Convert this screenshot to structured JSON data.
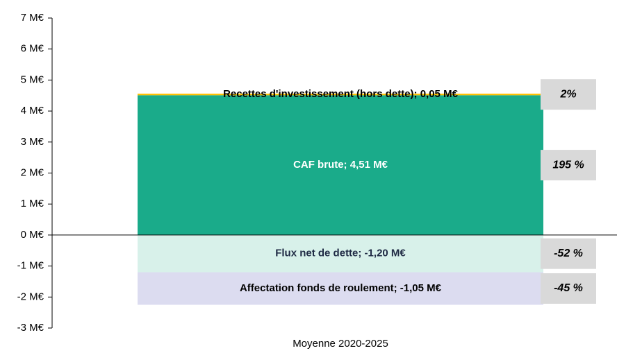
{
  "chart_data": {
    "type": "stacked_bar",
    "categories": [
      "Moyenne 2020-2025"
    ],
    "series": [
      {
        "name": "CAF brute",
        "color": "#1aab8a",
        "label_color": "#ffffff",
        "values": [
          4.51
        ],
        "value_labels": [
          "CAF brute; 4,51 M€"
        ],
        "share": {
          "value": 195,
          "label": "195 %"
        }
      },
      {
        "name": "Recettes d'investissement  (hors dette)",
        "color": "#ffc000",
        "label_color": "#000000",
        "values": [
          0.05
        ],
        "value_labels": [
          "Recettes d'investissement  (hors dette); 0,05 M€"
        ],
        "share": {
          "value": 2,
          "label": "2%"
        }
      },
      {
        "name": "Flux net de dette",
        "color": "#d8f1ea",
        "label_color": "#1f2a44",
        "values": [
          -1.2
        ],
        "value_labels": [
          "Flux net de dette; -1,20 M€"
        ],
        "share": {
          "value": -52,
          "label": "-52 %"
        }
      },
      {
        "name": "Affectation  fonds de roulement",
        "color": "#dcdcf0",
        "label_color": "#000000",
        "values": [
          -1.05
        ],
        "value_labels": [
          "Affectation  fonds de roulement; -1,05 M€"
        ],
        "share": {
          "value": -45,
          "label": "-45 %"
        }
      }
    ],
    "ylim": [
      -3,
      7
    ],
    "yticks": [
      {
        "value": -3,
        "label": "-3 M€"
      },
      {
        "value": -2,
        "label": "-2 M€"
      },
      {
        "value": -1,
        "label": "-1 M€"
      },
      {
        "value": 0,
        "label": "0 M€"
      },
      {
        "value": 1,
        "label": "1 M€"
      },
      {
        "value": 2,
        "label": "2 M€"
      },
      {
        "value": 3,
        "label": "3 M€"
      },
      {
        "value": 4,
        "label": "4 M€"
      },
      {
        "value": 5,
        "label": "5 M€"
      },
      {
        "value": 6,
        "label": "6 M€"
      },
      {
        "value": 7,
        "label": "7 M€"
      }
    ],
    "share_box_color": "#d9d9d9",
    "grid": false
  }
}
